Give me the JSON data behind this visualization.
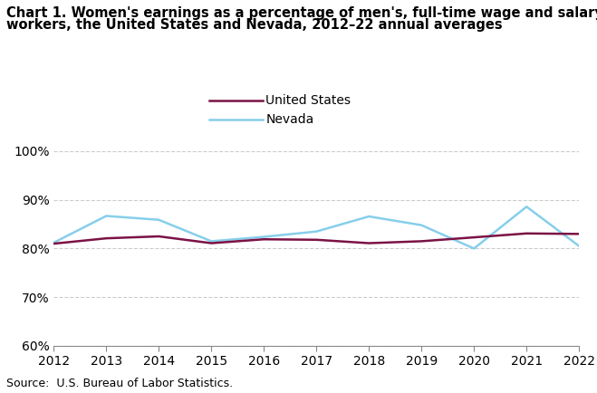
{
  "title_line1": "Chart 1. Women's earnings as a percentage of men's, full-time wage and salary",
  "title_line2": "workers, the United States and Nevada, 2012–22 annual averages",
  "years": [
    2012,
    2013,
    2014,
    2015,
    2016,
    2017,
    2018,
    2019,
    2020,
    2021,
    2022
  ],
  "us_values": [
    81.0,
    82.1,
    82.5,
    81.1,
    81.9,
    81.8,
    81.1,
    81.5,
    82.3,
    83.1,
    83.0
  ],
  "nv_values": [
    81.2,
    86.7,
    85.9,
    81.5,
    82.4,
    83.5,
    86.6,
    84.8,
    80.0,
    88.6,
    80.5
  ],
  "us_color": "#7b1245",
  "nv_color": "#87ceeb",
  "us_label": "United States",
  "nv_label": "Nevada",
  "ylim": [
    60,
    102
  ],
  "yticks": [
    60,
    70,
    80,
    90,
    100
  ],
  "ytick_labels": [
    "60%",
    "70%",
    "80%",
    "90%",
    "100%"
  ],
  "source_text": "Source:  U.S. Bureau of Labor Statistics.",
  "grid_color": "#cccccc",
  "background_color": "#ffffff",
  "line_width": 1.8,
  "title_fontsize": 10.5,
  "tick_fontsize": 10,
  "source_fontsize": 9
}
